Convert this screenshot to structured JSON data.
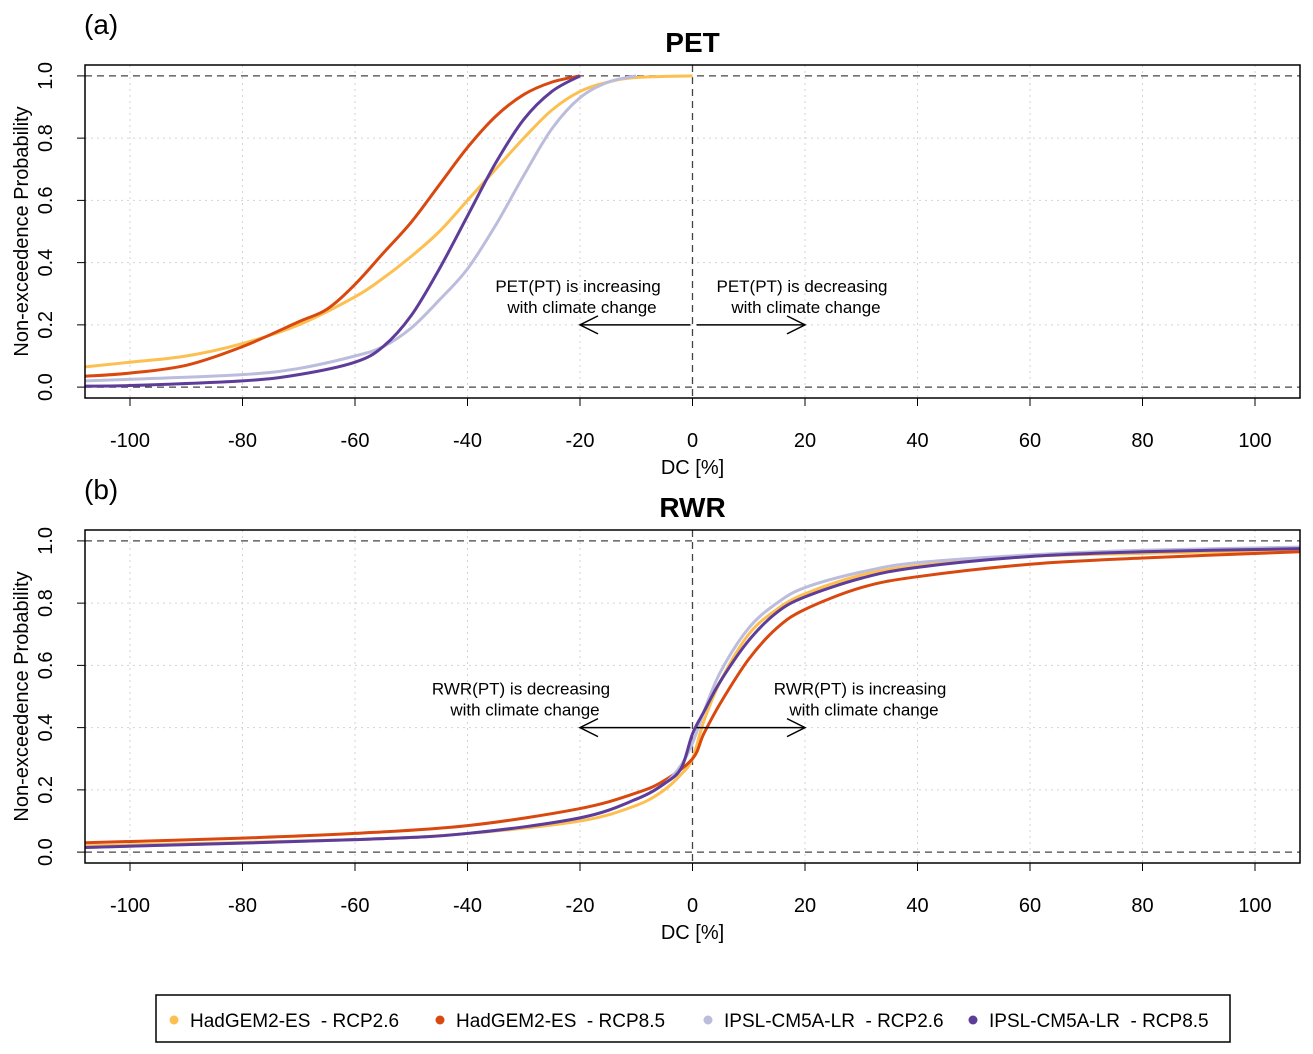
{
  "colors": {
    "had26": "#FDBF50",
    "had85": "#D9480F",
    "ipsl26": "#BCBDDC",
    "ipsl85": "#5E3C99"
  },
  "legend": [
    {
      "key": "had26",
      "label": "HadGEM2-ES  - RCP2.6"
    },
    {
      "key": "had85",
      "label": "HadGEM2-ES  - RCP8.5"
    },
    {
      "key": "ipsl26",
      "label": "IPSL-CM5A-LR  - RCP2.6"
    },
    {
      "key": "ipsl85",
      "label": "IPSL-CM5A-LR  - RCP8.5"
    }
  ],
  "chart_data": [
    {
      "type": "line",
      "panel_label": "(a)",
      "title": "PET",
      "xlabel": "DC [%]",
      "ylabel": "Non-exceedence Probability",
      "xlim": [
        -108,
        108
      ],
      "ylim": [
        -0.035,
        1.035
      ],
      "xticks": [
        -100,
        -80,
        -60,
        -40,
        -20,
        0,
        20,
        40,
        60,
        80,
        100
      ],
      "yticks": [
        "0.0",
        "0.2",
        "0.4",
        "0.6",
        "0.8",
        "1.0"
      ],
      "grid": true,
      "annotations": [
        {
          "text": [
            "PET(PT) is increasing",
            "with climate change"
          ],
          "x": -20,
          "y": 0.2,
          "arrow_from": 0,
          "arrow_to": -20
        },
        {
          "text": [
            "PET(PT) is decreasing",
            "with climate change"
          ],
          "x": 20,
          "y": 0.2,
          "arrow_from": 0,
          "arrow_to": 20
        }
      ],
      "series": [
        {
          "key": "had26",
          "x": [
            -108,
            -100,
            -90,
            -80,
            -70,
            -60,
            -55,
            -50,
            -45,
            -40,
            -35,
            -30,
            -25,
            -20,
            -15,
            -10,
            0
          ],
          "y": [
            0.065,
            0.08,
            0.1,
            0.14,
            0.2,
            0.29,
            0.35,
            0.42,
            0.5,
            0.6,
            0.7,
            0.8,
            0.89,
            0.95,
            0.98,
            0.995,
            1.0
          ]
        },
        {
          "key": "had85",
          "x": [
            -108,
            -100,
            -90,
            -80,
            -70,
            -65,
            -60,
            -55,
            -50,
            -45,
            -40,
            -35,
            -30,
            -25,
            -20
          ],
          "y": [
            0.035,
            0.045,
            0.07,
            0.13,
            0.21,
            0.25,
            0.33,
            0.43,
            0.53,
            0.65,
            0.77,
            0.87,
            0.94,
            0.98,
            1.0
          ]
        },
        {
          "key": "ipsl26",
          "x": [
            -108,
            -100,
            -80,
            -70,
            -60,
            -55,
            -50,
            -45,
            -40,
            -35,
            -30,
            -25,
            -20,
            -15,
            -10
          ],
          "y": [
            0.02,
            0.025,
            0.04,
            0.06,
            0.1,
            0.13,
            0.19,
            0.28,
            0.38,
            0.52,
            0.68,
            0.83,
            0.93,
            0.98,
            1.0
          ]
        },
        {
          "key": "ipsl85",
          "x": [
            -108,
            -100,
            -80,
            -70,
            -60,
            -55,
            -50,
            -45,
            -40,
            -35,
            -30,
            -25,
            -20
          ],
          "y": [
            0.003,
            0.005,
            0.02,
            0.04,
            0.08,
            0.13,
            0.23,
            0.38,
            0.55,
            0.72,
            0.86,
            0.95,
            1.0
          ]
        }
      ]
    },
    {
      "type": "line",
      "panel_label": "(b)",
      "title": "RWR",
      "xlabel": "DC [%]",
      "ylabel": "Non-exceedence Probability",
      "xlim": [
        -108,
        108
      ],
      "ylim": [
        -0.035,
        1.035
      ],
      "xticks": [
        -100,
        -80,
        -60,
        -40,
        -20,
        0,
        20,
        40,
        60,
        80,
        100
      ],
      "yticks": [
        "0.0",
        "0.2",
        "0.4",
        "0.6",
        "0.8",
        "1.0"
      ],
      "grid": true,
      "annotations": [
        {
          "text": [
            "RWR(PT) is decreasing",
            "with climate change"
          ],
          "x": -30,
          "y": 0.4,
          "arrow_from": 0,
          "arrow_to": -20
        },
        {
          "text": [
            "RWR(PT) is increasing",
            "with climate change"
          ],
          "x": 30,
          "y": 0.4,
          "arrow_from": 0,
          "arrow_to": 20
        }
      ],
      "series": [
        {
          "key": "had26",
          "x": [
            -108,
            -60,
            -40,
            -20,
            -10,
            -5,
            -2,
            0,
            2,
            5,
            10,
            15,
            20,
            30,
            40,
            60,
            80,
            108
          ],
          "y": [
            0.02,
            0.04,
            0.06,
            0.1,
            0.15,
            0.2,
            0.25,
            0.3,
            0.42,
            0.55,
            0.7,
            0.78,
            0.83,
            0.89,
            0.92,
            0.95,
            0.96,
            0.97
          ]
        },
        {
          "key": "had85",
          "x": [
            -108,
            -80,
            -60,
            -40,
            -20,
            -10,
            -5,
            0,
            2,
            5,
            10,
            15,
            20,
            30,
            40,
            60,
            80,
            108
          ],
          "y": [
            0.03,
            0.045,
            0.06,
            0.085,
            0.14,
            0.19,
            0.23,
            0.3,
            0.38,
            0.48,
            0.62,
            0.72,
            0.78,
            0.85,
            0.885,
            0.925,
            0.945,
            0.965
          ]
        },
        {
          "key": "ipsl26",
          "x": [
            -108,
            -60,
            -40,
            -20,
            -10,
            -5,
            -2,
            0,
            2,
            5,
            10,
            15,
            20,
            30,
            40,
            60,
            80,
            108
          ],
          "y": [
            0.015,
            0.04,
            0.06,
            0.11,
            0.17,
            0.22,
            0.28,
            0.35,
            0.45,
            0.58,
            0.72,
            0.8,
            0.85,
            0.9,
            0.93,
            0.955,
            0.97,
            0.98
          ]
        },
        {
          "key": "ipsl85",
          "x": [
            -108,
            -60,
            -40,
            -20,
            -10,
            -5,
            -2,
            0,
            2,
            5,
            10,
            15,
            20,
            30,
            40,
            60,
            80,
            108
          ],
          "y": [
            0.015,
            0.04,
            0.06,
            0.11,
            0.17,
            0.22,
            0.27,
            0.38,
            0.45,
            0.55,
            0.68,
            0.77,
            0.82,
            0.88,
            0.915,
            0.95,
            0.965,
            0.975
          ]
        }
      ]
    }
  ]
}
